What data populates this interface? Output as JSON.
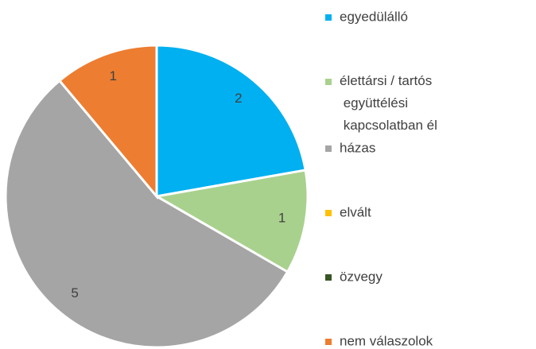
{
  "chart_data": {
    "type": "pie",
    "categories": [
      "egyedülálló",
      "élettársi / tartós együttélési kapcsolatban él",
      "házas",
      "elvált",
      "özvegy",
      "nem válaszolok"
    ],
    "values": [
      2,
      1,
      5,
      0,
      0,
      1
    ],
    "colors": [
      "#00b0f0",
      "#a9d18e",
      "#a5a5a5",
      "#ffc000",
      "#375623",
      "#ed7d31"
    ],
    "legend": "right"
  }
}
